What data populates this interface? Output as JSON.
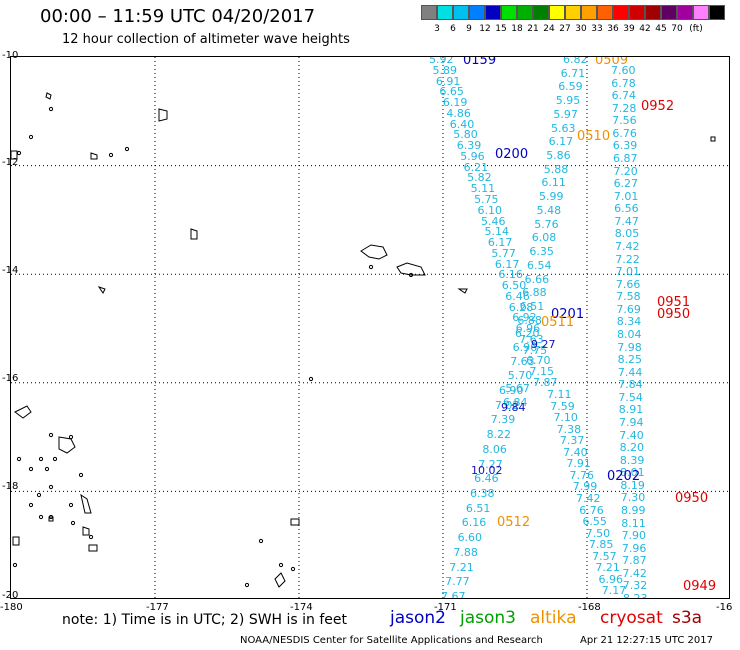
{
  "title": "00:00 – 11:59 UTC 04/20/2017",
  "subtitle": "12 hour collection of altimeter wave heights",
  "scale": {
    "unit_label": "(ft)",
    "colors": [
      "#808080",
      "#00e0e0",
      "#00c0f0",
      "#0080ff",
      "#0000c0",
      "#00e000",
      "#00b000",
      "#008000",
      "#ffff00",
      "#ffd000",
      "#ffa000",
      "#ff6000",
      "#ff0000",
      "#d00000",
      "#a00000",
      "#600060",
      "#a000a0",
      "#ff80ff",
      "#000000"
    ],
    "labels": [
      "3",
      "6",
      "9",
      "12",
      "15",
      "18",
      "21",
      "24",
      "27",
      "30",
      "33",
      "36",
      "39",
      "42",
      "45",
      "70"
    ]
  },
  "lat_labels": [
    "-10",
    "-12",
    "-14",
    "-16",
    "-18",
    "-20"
  ],
  "lon_labels": [
    "-180",
    "-177",
    "-174",
    "-171",
    "-168",
    "-16"
  ],
  "tracks": [
    {
      "color": "#22b8e0",
      "values": [
        "5.92",
        "5.89",
        "6.91",
        "6.65",
        "6.19",
        "4.86",
        "6.40",
        "5.80",
        "6.39",
        "5.96",
        "6.21",
        "5.82",
        "5.11",
        "5.75",
        "6.10",
        "5.46",
        "5.14",
        "6.17",
        "5.77",
        "6.17",
        "6.16",
        "6.50",
        "6.46",
        "6.28",
        "6.92",
        "6.96",
        "7.63",
        "7.75",
        "6.70",
        "7.15",
        "7.87"
      ]
    },
    {
      "color": "#22b8e0",
      "values": [
        "6.82",
        "6.71",
        "6.59",
        "5.95",
        "5.97",
        "5.63",
        "6.17",
        "5.86",
        "5.88",
        "6.11",
        "5.99",
        "5.48",
        "5.76",
        "6.08",
        "6.35",
        "6.54",
        "6.66",
        "6.88",
        "6.51",
        "6.88",
        "6.20",
        "6.96",
        "7.63",
        "5.70",
        "5.67",
        "6.84"
      ]
    },
    {
      "color": "#22b8e0",
      "values": [
        "7.60",
        "6.78",
        "6.74",
        "7.28",
        "7.56",
        "6.76",
        "6.39",
        "6.87",
        "7.20",
        "6.27",
        "7.01",
        "6.56",
        "7.47",
        "8.05",
        "7.42",
        "7.22",
        "7.01",
        "7.66",
        "7.58",
        "7.69",
        "8.34",
        "8.04",
        "7.98",
        "8.25",
        "7.44",
        "7.84",
        "7.54",
        "8.91",
        "7.94",
        "7.40",
        "8.20",
        "8.39",
        "8.01",
        "8.19",
        "7.30",
        "8.99",
        "8.11",
        "7.90",
        "7.96",
        "7.87",
        "7.42",
        "7.32",
        "8.23"
      ]
    },
    {
      "color": "#22b8e0",
      "values": [
        "6.90",
        "7.02",
        "7.39",
        "8.22",
        "8.06",
        "7.27",
        "6.46",
        "6.38",
        "6.51",
        "6.16",
        "6.60",
        "7.88",
        "7.21",
        "7.77",
        "7.67"
      ]
    },
    {
      "color": "#22b8e0",
      "values": [
        "7.11",
        "7.59",
        "7.10",
        "7.38",
        "7.37",
        "7.40",
        "7.91",
        "7.76",
        "7.99",
        "7.42",
        "6.76",
        "6.55",
        "7.50",
        "7.85",
        "7.57",
        "7.21",
        "6.96",
        "7.17",
        "7.74"
      ]
    },
    {
      "color": "#1010c0",
      "values": [
        "9.27",
        "9.84",
        "10.02"
      ]
    }
  ],
  "time_labels": [
    {
      "text": "0159",
      "color": "#0000c0"
    },
    {
      "text": "0509",
      "color": "#f09000"
    },
    {
      "text": "0952",
      "color": "#e00000"
    },
    {
      "text": "0510",
      "color": "#f09000"
    },
    {
      "text": "0200",
      "color": "#0000c0"
    },
    {
      "text": "0201",
      "color": "#0000c0"
    },
    {
      "text": "0511",
      "color": "#f09000"
    },
    {
      "text": "0951",
      "color": "#e00000"
    },
    {
      "text": "0950",
      "color": "#e00000"
    },
    {
      "text": "0202",
      "color": "#0000c0"
    },
    {
      "text": "0950",
      "color": "#e00000"
    },
    {
      "text": "0512",
      "color": "#f09000"
    },
    {
      "text": "0949",
      "color": "#e00000"
    }
  ],
  "note": "note: 1) Time is in UTC; 2) SWH is in feet",
  "satellites": [
    {
      "name": "jason2",
      "color": "#0000c0"
    },
    {
      "name": "jason3",
      "color": "#00a000"
    },
    {
      "name": "altika",
      "color": "#f09000"
    },
    {
      "name": "cryosat",
      "color": "#e00000"
    },
    {
      "name": "s3a",
      "color": "#a00000"
    }
  ],
  "credit": "NOAA/NESDIS Center for Satellite Applications and Research",
  "timestamp": "Apr 21 12:27:15 UTC 2017"
}
